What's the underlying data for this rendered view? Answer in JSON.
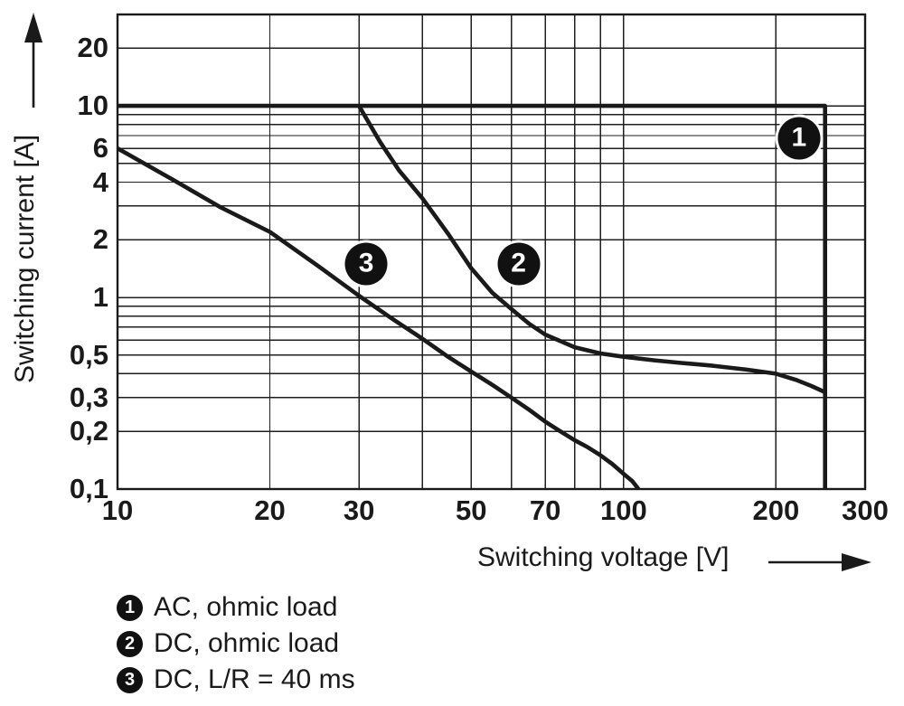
{
  "colors": {
    "background": "#ffffff",
    "ink": "#1a1a1a",
    "grid": "#1f1f1f",
    "badge_bg": "#111111",
    "badge_text": "#ffffff"
  },
  "chart_data": {
    "type": "line",
    "title": "",
    "xlabel": "Switching voltage [V]",
    "ylabel": "Switching current [A]",
    "x_scale": "log",
    "y_scale": "log",
    "xlim": [
      10,
      300
    ],
    "ylim": [
      0.1,
      30
    ],
    "grid": true,
    "legend_position": "below",
    "x_gridlines": [
      10,
      20,
      30,
      40,
      50,
      60,
      70,
      80,
      90,
      100,
      200,
      300
    ],
    "y_gridlines": [
      0.1,
      0.2,
      0.3,
      0.4,
      0.5,
      0.6,
      0.7,
      0.8,
      0.9,
      1,
      2,
      3,
      4,
      5,
      6,
      7,
      8,
      9,
      10,
      20,
      30
    ],
    "x_ticks": [
      {
        "v": 10,
        "label": "10"
      },
      {
        "v": 20,
        "label": "20"
      },
      {
        "v": 30,
        "label": "30"
      },
      {
        "v": 50,
        "label": "50"
      },
      {
        "v": 70,
        "label": "70"
      },
      {
        "v": 100,
        "label": "100"
      },
      {
        "v": 200,
        "label": "200"
      },
      {
        "v": 300,
        "label": "300"
      }
    ],
    "y_ticks": [
      {
        "v": 20,
        "label": "20"
      },
      {
        "v": 10,
        "label": "10"
      },
      {
        "v": 6,
        "label": "6"
      },
      {
        "v": 4,
        "label": "4"
      },
      {
        "v": 2,
        "label": "2"
      },
      {
        "v": 1,
        "label": "1"
      },
      {
        "v": 0.5,
        "label": "0,5"
      },
      {
        "v": 0.3,
        "label": "0,3"
      },
      {
        "v": 0.2,
        "label": "0,2"
      },
      {
        "v": 0.1,
        "label": "0,1"
      }
    ],
    "series": [
      {
        "id": "1",
        "name": "AC, ohmic load",
        "points": [
          [
            10,
            10
          ],
          [
            250,
            10
          ],
          [
            250,
            0.1
          ]
        ]
      },
      {
        "id": "2",
        "name": "DC, ohmic load",
        "points": [
          [
            30,
            10
          ],
          [
            33,
            6.5
          ],
          [
            36,
            4.6
          ],
          [
            40,
            3.3
          ],
          [
            45,
            2.15
          ],
          [
            50,
            1.42
          ],
          [
            55,
            1.06
          ],
          [
            60,
            0.87
          ],
          [
            65,
            0.73
          ],
          [
            70,
            0.64
          ],
          [
            80,
            0.55
          ],
          [
            90,
            0.51
          ],
          [
            100,
            0.49
          ],
          [
            115,
            0.47
          ],
          [
            130,
            0.455
          ],
          [
            150,
            0.44
          ],
          [
            175,
            0.42
          ],
          [
            200,
            0.4
          ],
          [
            220,
            0.37
          ],
          [
            235,
            0.345
          ],
          [
            250,
            0.32
          ]
        ]
      },
      {
        "id": "3",
        "name": "DC, L/R = 40 ms",
        "points": [
          [
            10,
            6
          ],
          [
            13,
            4.05
          ],
          [
            16,
            2.95
          ],
          [
            20,
            2.2
          ],
          [
            25,
            1.45
          ],
          [
            30,
            1.02
          ],
          [
            35,
            0.77
          ],
          [
            40,
            0.61
          ],
          [
            45,
            0.49
          ],
          [
            50,
            0.41
          ],
          [
            55,
            0.35
          ],
          [
            60,
            0.3
          ],
          [
            65,
            0.26
          ],
          [
            70,
            0.225
          ],
          [
            75,
            0.2
          ],
          [
            80,
            0.18
          ],
          [
            85,
            0.165
          ],
          [
            90,
            0.15
          ],
          [
            95,
            0.135
          ],
          [
            100,
            0.12
          ],
          [
            104,
            0.11
          ],
          [
            107,
            0.1
          ]
        ]
      }
    ],
    "markers": [
      {
        "label": "1",
        "x": 222,
        "y": 6.8
      },
      {
        "label": "2",
        "x": 62,
        "y": 1.5
      },
      {
        "label": "3",
        "x": 31,
        "y": 1.5
      }
    ]
  },
  "legend": {
    "items": [
      {
        "badge": "1",
        "label": "AC, ohmic load"
      },
      {
        "badge": "2",
        "label": "DC, ohmic load"
      },
      {
        "badge": "3",
        "label": "DC, L/R = 40 ms"
      }
    ]
  }
}
